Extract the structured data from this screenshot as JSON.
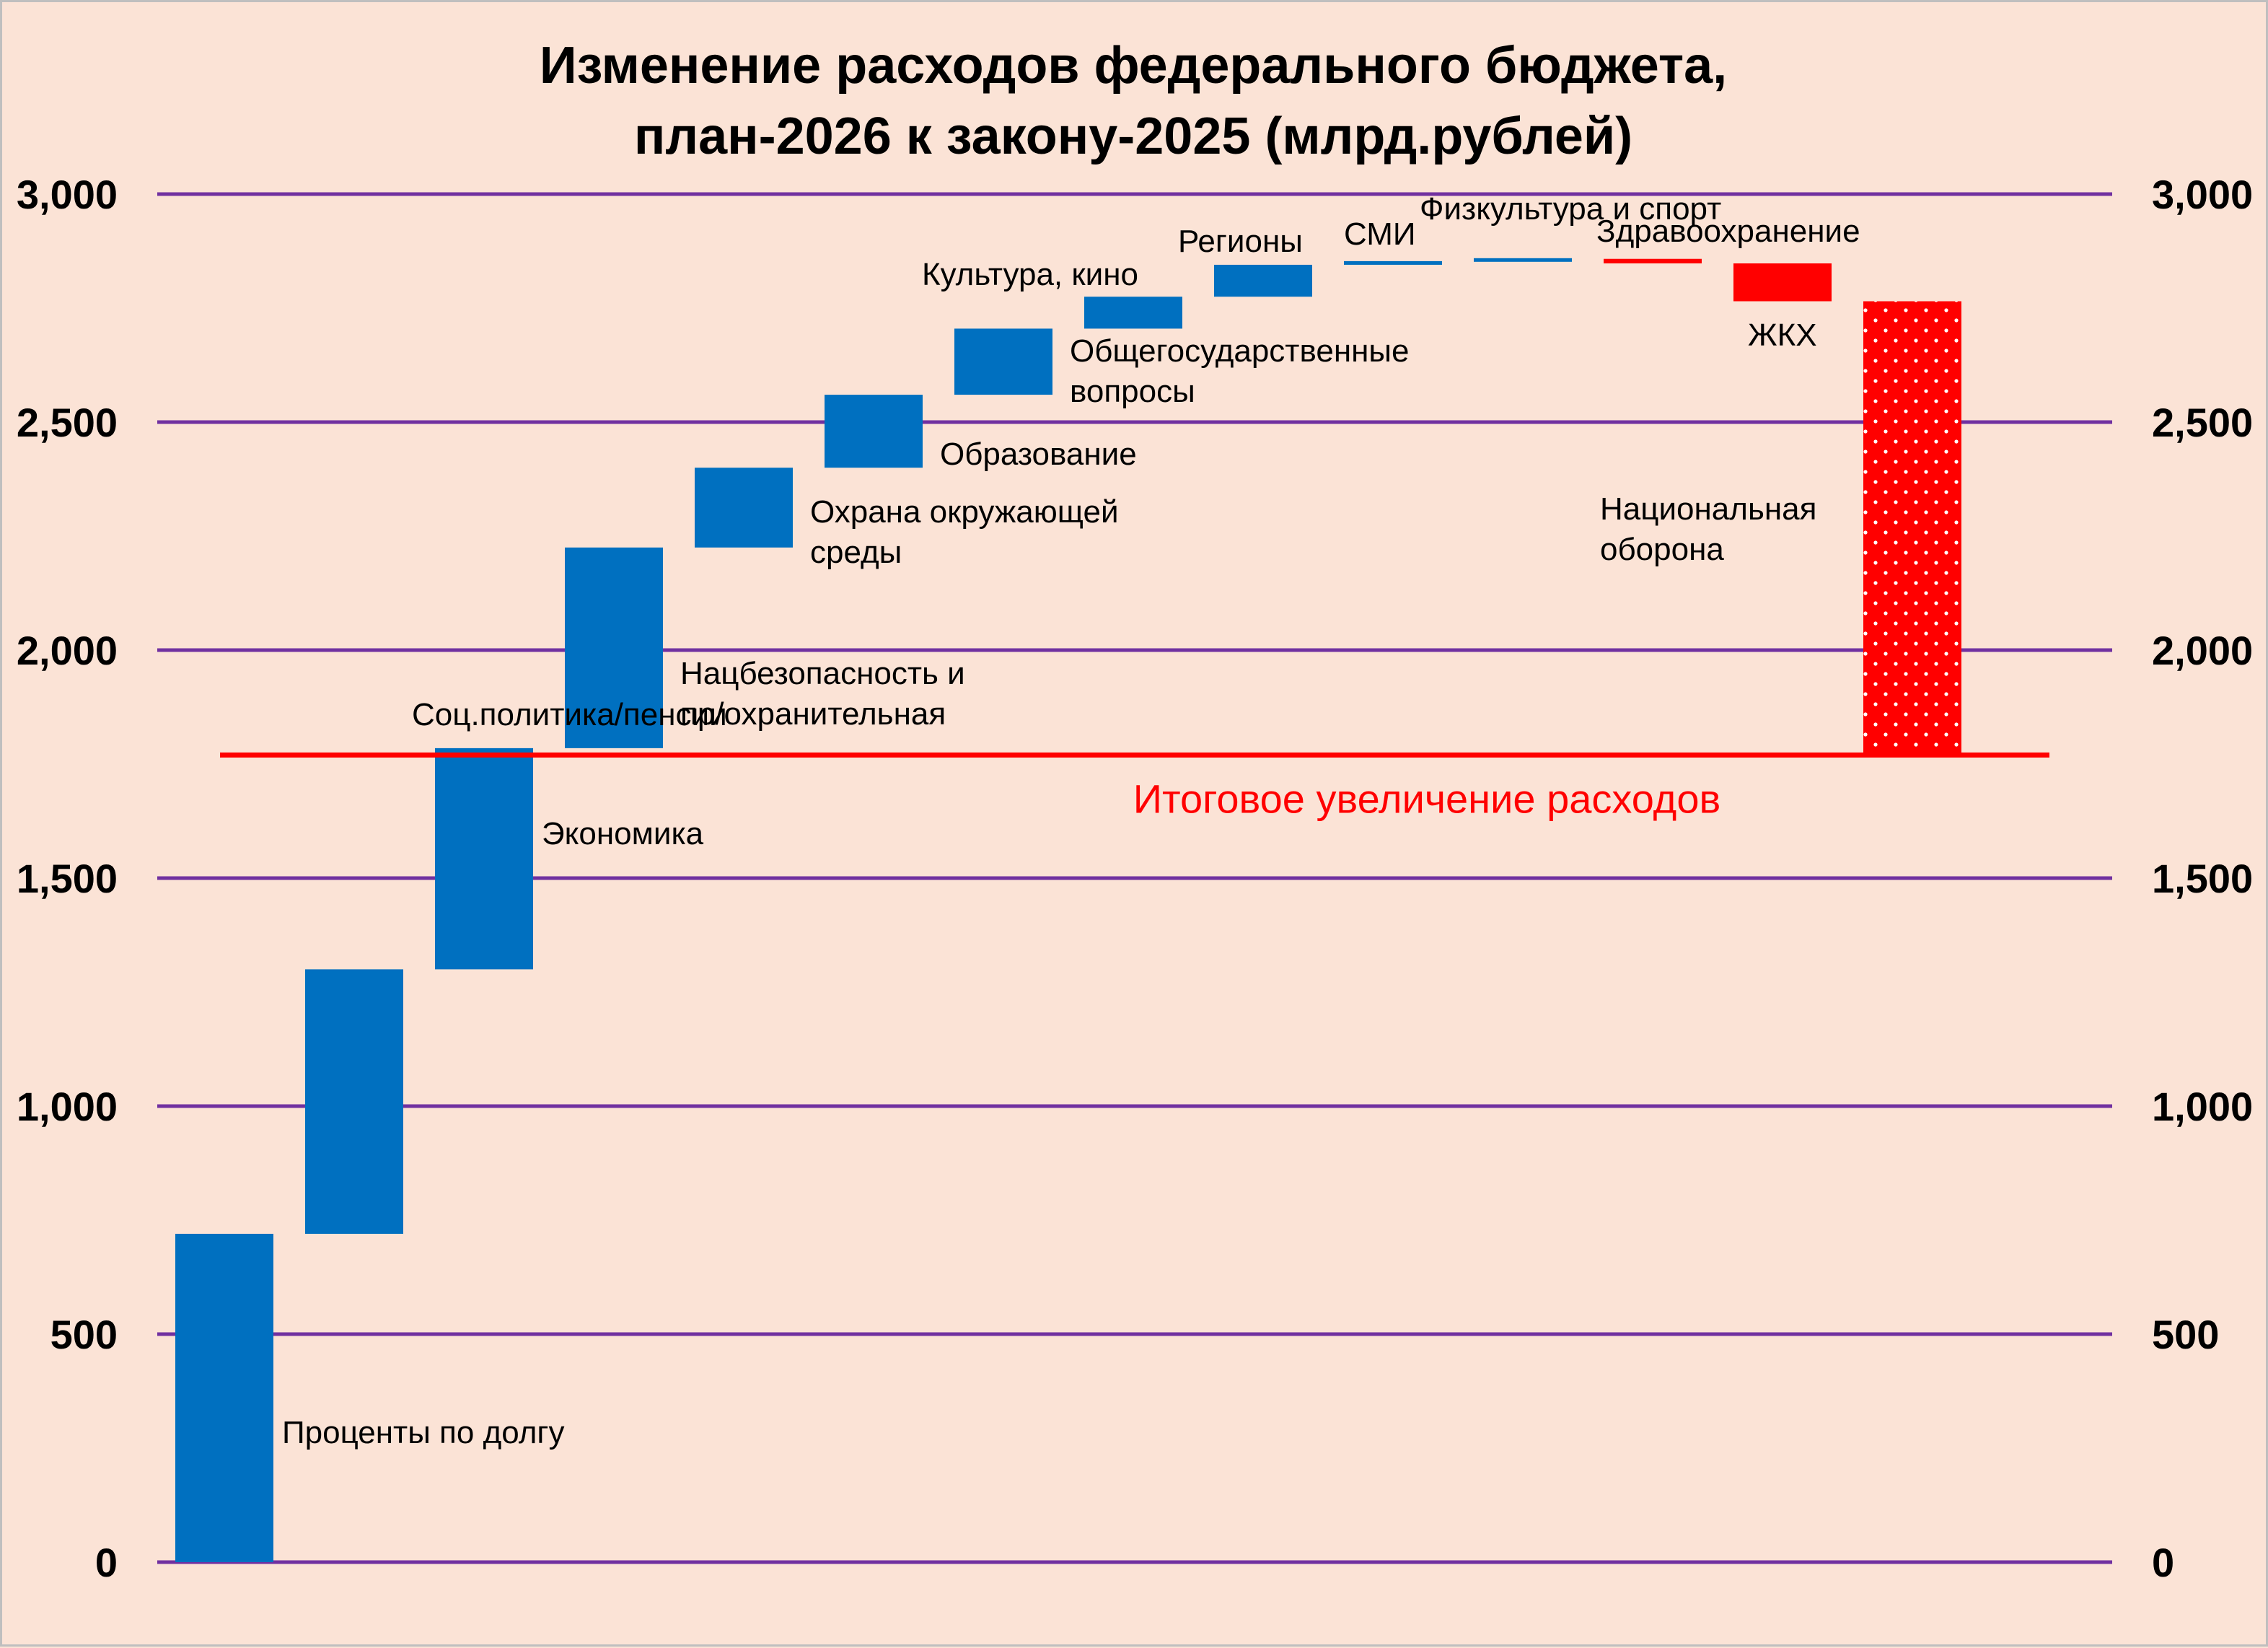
{
  "chart_data": {
    "type": "waterfall",
    "title_lines": [
      "Изменение расходов федерального бюджета,",
      "план-2026 к закону-2025 (млрд.рублей)"
    ],
    "ylim": [
      0,
      3000
    ],
    "yticks": [
      0,
      500,
      1000,
      1500,
      2000,
      2500,
      3000
    ],
    "ytick_labels": [
      "0",
      "500",
      "1,000",
      "1,500",
      "2,000",
      "2,500",
      "3,000"
    ],
    "y_axis_both_sides": true,
    "grid": true,
    "colors": {
      "increase": "#0070c0",
      "decrease": "#ff0000",
      "grid": "#7030a0",
      "background": "#fbe3d6",
      "total_line": "#ff0000"
    },
    "steps": [
      {
        "label_lines": [
          "Проценты по долгу"
        ],
        "start": 0,
        "end": 720
      },
      {
        "label_lines": [
          "Соц.политика/пенсии"
        ],
        "start": 720,
        "end": 1300
      },
      {
        "label_lines": [
          "Экономика"
        ],
        "start": 1300,
        "end": 1785
      },
      {
        "label_lines": [
          "Нацбезопасность и",
          "пр/охранительная"
        ],
        "start": 1785,
        "end": 2225
      },
      {
        "label_lines": [
          "Охрана окружающей",
          "среды"
        ],
        "start": 2225,
        "end": 2400
      },
      {
        "label_lines": [
          "Образование"
        ],
        "start": 2400,
        "end": 2560
      },
      {
        "label_lines": [
          "Общегосударственные",
          "вопросы"
        ],
        "start": 2560,
        "end": 2705
      },
      {
        "label_lines": [
          "Культура, кино"
        ],
        "start": 2705,
        "end": 2775
      },
      {
        "label_lines": [
          "Регионы"
        ],
        "start": 2775,
        "end": 2845
      },
      {
        "label_lines": [
          "СМИ"
        ],
        "start": 2845,
        "end": 2853
      },
      {
        "label_lines": [
          "Физкультура и спорт"
        ],
        "start": 2853,
        "end": 2858
      },
      {
        "label_lines": [
          "Здравоохранение"
        ],
        "start": 2858,
        "end": 2848
      },
      {
        "label_lines": [
          "ЖКХ"
        ],
        "start": 2848,
        "end": 2765
      },
      {
        "label_lines": [
          "Национальная",
          "оборона"
        ],
        "start": 2765,
        "end": 1770,
        "patterned": true
      }
    ],
    "total": {
      "label": "Итоговое увеличение расходов",
      "value": 1770
    }
  }
}
